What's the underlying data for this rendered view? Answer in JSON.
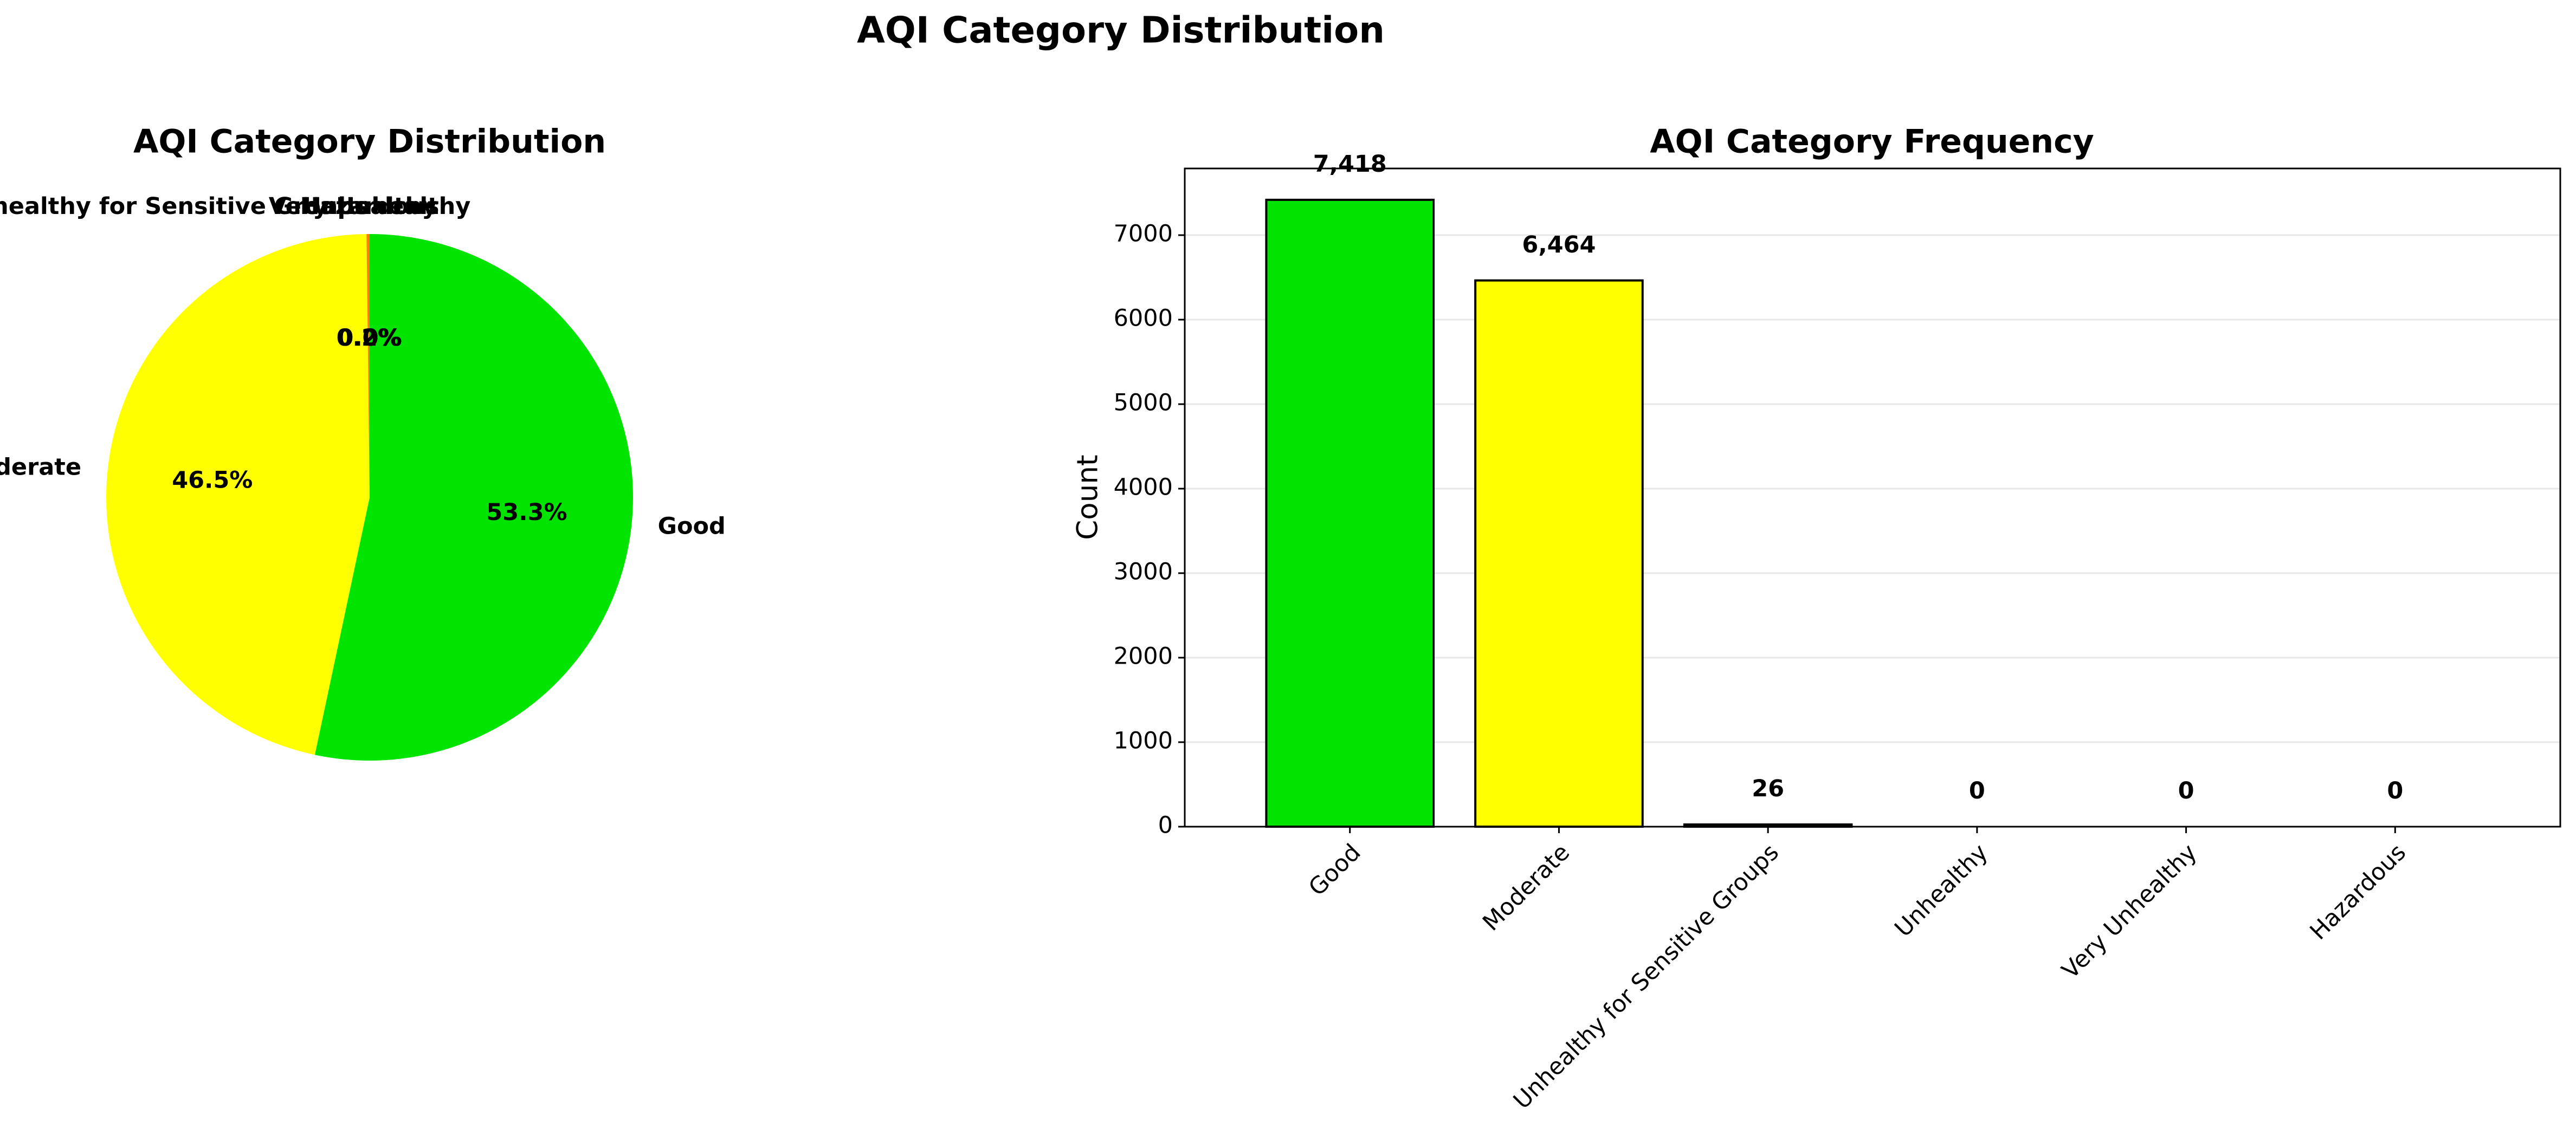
{
  "figure": {
    "suptitle": "AQI Category Distribution"
  },
  "colors": {
    "Good": "#00e400",
    "Moderate": "#ffff00",
    "Unhealthy for Sensitive Groups": "#ff7e00",
    "Unhealthy": "#ff0000",
    "Very Unhealthy": "#8f3f97",
    "Hazardous": "#7e0023"
  },
  "chart_data": [
    {
      "type": "pie",
      "title": "AQI Category Distribution",
      "labels": [
        "Good",
        "Moderate",
        "Unhealthy for Sensitive Groups",
        "Unhealthy",
        "Very Unhealthy",
        "Hazardous"
      ],
      "values": [
        7418,
        6464,
        26,
        0,
        0,
        0
      ],
      "percent_labels": [
        "53.3%",
        "46.5%",
        "0.2%",
        "0.0%",
        "0.0%",
        "0.0%"
      ],
      "start_angle_deg": 90,
      "direction": "clockwise"
    },
    {
      "type": "bar",
      "title": "AQI Category Frequency",
      "xlabel": "",
      "ylabel": "Count",
      "categories": [
        "Good",
        "Moderate",
        "Unhealthy for Sensitive Groups",
        "Unhealthy",
        "Very Unhealthy",
        "Hazardous"
      ],
      "values": [
        7418,
        6464,
        26,
        0,
        0,
        0
      ],
      "value_labels": [
        "7,418",
        "6,464",
        "26",
        "0",
        "0",
        "0"
      ],
      "ylim": [
        0,
        7788.9
      ],
      "yticks": [
        0,
        1000,
        2000,
        3000,
        4000,
        5000,
        6000,
        7000
      ],
      "ytick_labels": [
        "0",
        "1000",
        "2000",
        "3000",
        "4000",
        "5000",
        "6000",
        "7000"
      ],
      "grid": "y",
      "xtick_rotation_deg": 45
    }
  ]
}
